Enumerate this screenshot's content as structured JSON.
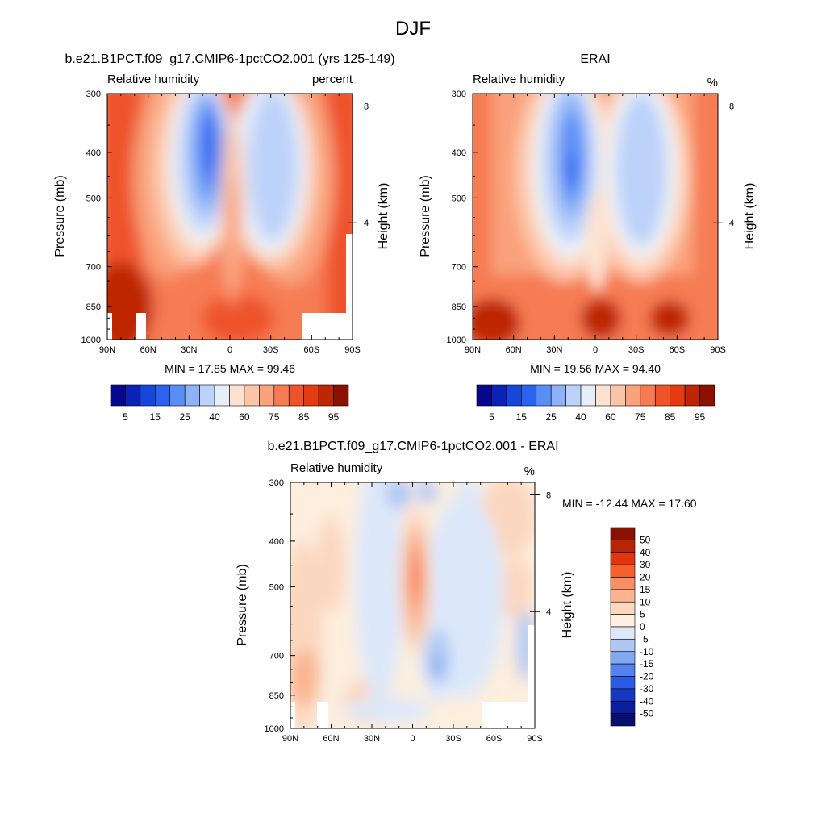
{
  "figure_title": "DJF",
  "chart_data": [
    {
      "type": "heatmap",
      "title": "b.e21.B1PCT.f09_g17.CMIP6-1pctCO2.001 (yrs 125-149)",
      "left_label": "Relative humidity",
      "right_label": "percent",
      "ylabel": "Pressure (mb)",
      "y2label": "Height (km)",
      "x_ticks": [
        "90N",
        "60N",
        "30N",
        "0",
        "30S",
        "60S",
        "90S"
      ],
      "y_ticks": [
        300,
        400,
        500,
        700,
        850,
        1000
      ],
      "y2_ticks": [
        8,
        4
      ],
      "ylim": [
        1000,
        300
      ],
      "stats": "MIN =  17.85  MAX =  99.46",
      "colorbar_labels": [
        "5",
        "15",
        "25",
        "40",
        "60",
        "75",
        "85",
        "95"
      ]
    },
    {
      "type": "heatmap",
      "title": "ERAI",
      "left_label": "Relative humidity",
      "right_label": "%",
      "ylabel": "Pressure (mb)",
      "y2label": "Height (km)",
      "x_ticks": [
        "90N",
        "60N",
        "30N",
        "0",
        "30S",
        "60S",
        "90S"
      ],
      "y_ticks": [
        300,
        400,
        500,
        700,
        850,
        1000
      ],
      "y2_ticks": [
        8,
        4
      ],
      "ylim": [
        1000,
        300
      ],
      "stats": "MIN =  19.56  MAX =  94.40",
      "colorbar_labels": [
        "5",
        "15",
        "25",
        "40",
        "60",
        "75",
        "85",
        "95"
      ]
    },
    {
      "type": "heatmap",
      "title": "b.e21.B1PCT.f09_g17.CMIP6-1pctCO2.001 - ERAI",
      "left_label": "Relative humidity",
      "right_label": "%",
      "ylabel": "Pressure (mb)",
      "y2label": "Height (km)",
      "x_ticks": [
        "90N",
        "60N",
        "30N",
        "0",
        "30S",
        "60S",
        "90S"
      ],
      "y_ticks": [
        300,
        400,
        500,
        700,
        850,
        1000
      ],
      "y2_ticks": [
        8,
        4
      ],
      "ylim": [
        1000,
        300
      ],
      "stats": "MIN = -12.44  MAX =  17.60",
      "colorbar_labels": [
        "50",
        "40",
        "30",
        "20",
        "15",
        "10",
        "5",
        "0",
        "-5",
        "-10",
        "-15",
        "-20",
        "-30",
        "-40",
        "-50"
      ]
    }
  ],
  "palette_abs": [
    "#08088f",
    "#0a22b6",
    "#1646da",
    "#2b63ef",
    "#5a8ef7",
    "#8db2f7",
    "#bdd2f9",
    "#e6eef9",
    "#fde2d2",
    "#fcc5a8",
    "#f9a27c",
    "#f67b52",
    "#ee5329",
    "#e23c10",
    "#be2606",
    "#8a1002"
  ],
  "palette_diff": [
    "#8a1002",
    "#b82406",
    "#e0360c",
    "#f6602c",
    "#f98d63",
    "#fbb48f",
    "#fcd7bf",
    "#fdeede",
    "#dce8fa",
    "#aec7f4",
    "#82a8f2",
    "#5382ee",
    "#2a5ae6",
    "#1538c2",
    "#0a1d9c",
    "#060f6e"
  ]
}
